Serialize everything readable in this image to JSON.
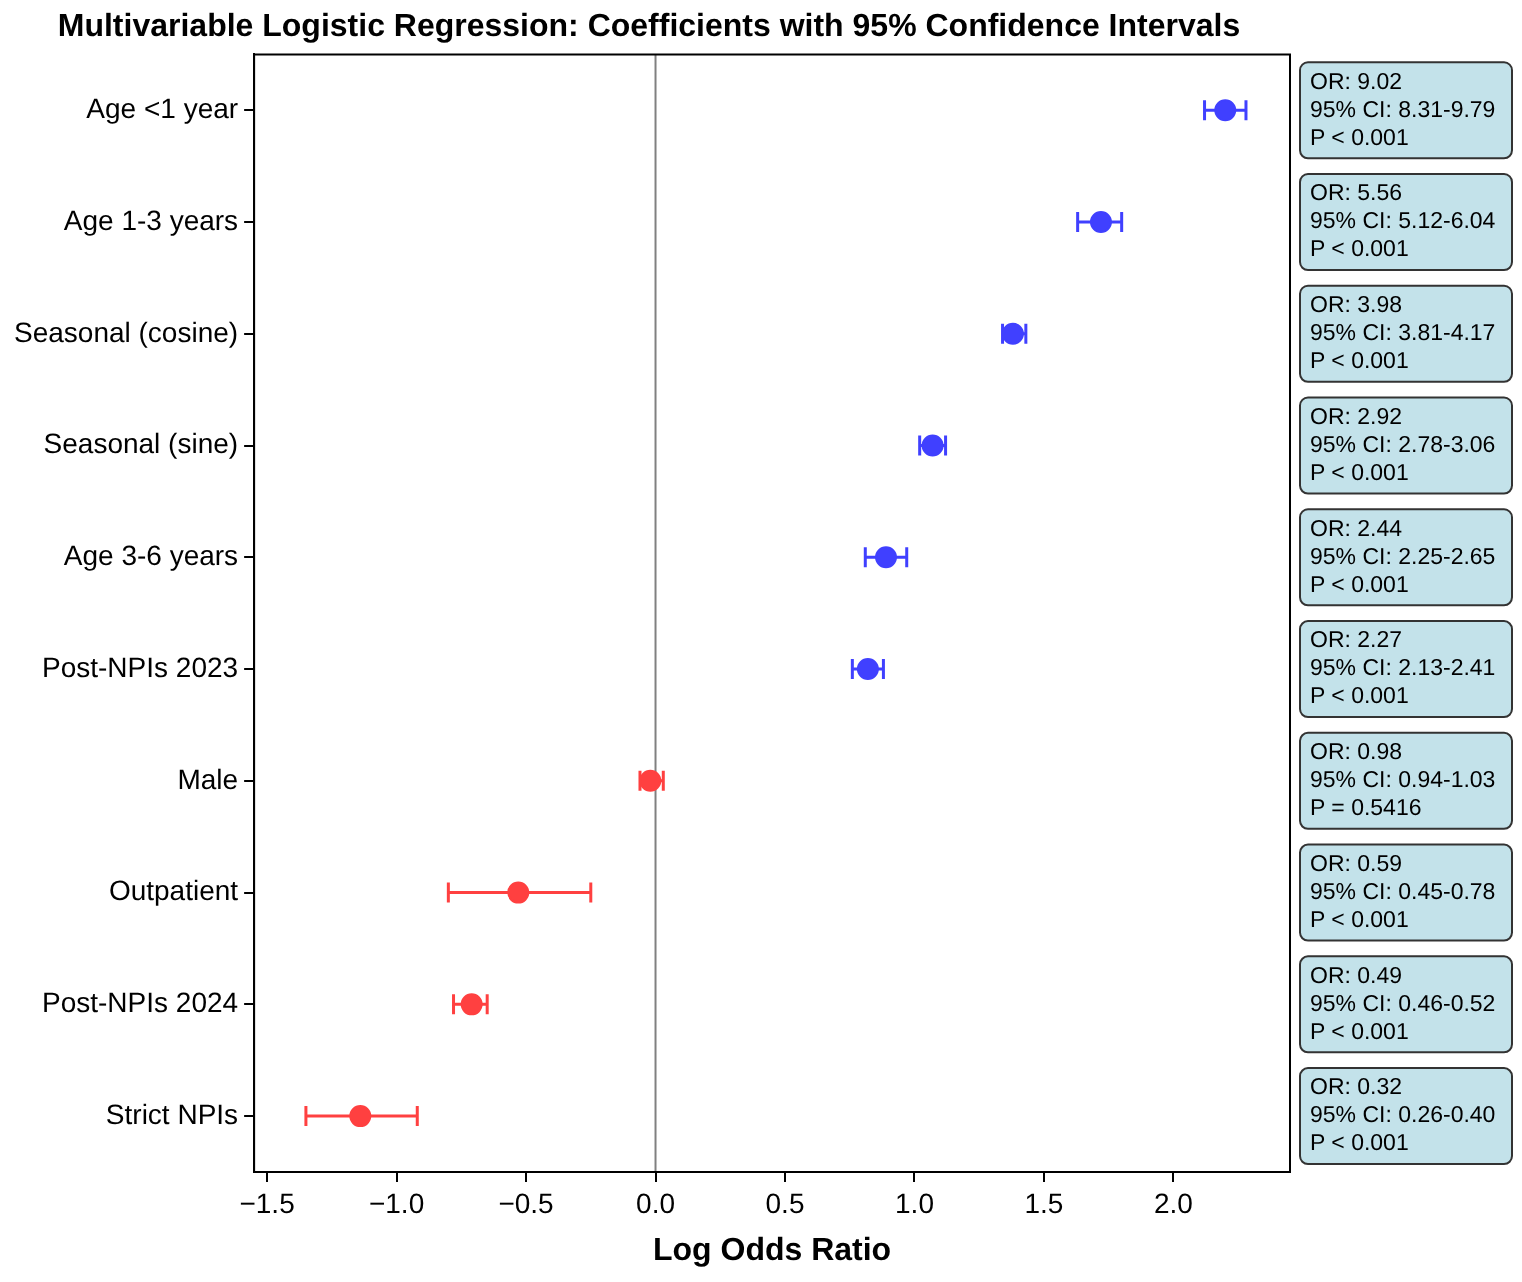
{
  "chart_data": {
    "type": "scatter",
    "orientation": "horizontal",
    "title": "Multivariable Logistic Regression: Coefficients with 95% Confidence Intervals",
    "xlabel": "Log Odds Ratio",
    "categories": [
      "Age <1 year",
      "Age 1-3 years",
      "Seasonal (cosine)",
      "Seasonal (sine)",
      "Age 3-6 years",
      "Post-NPIs 2023",
      "Male",
      "Outpatient",
      "Post-NPIs 2024",
      "Strict NPIs"
    ],
    "values": [
      2.2,
      1.72,
      1.38,
      1.07,
      0.89,
      0.82,
      -0.02,
      -0.53,
      -0.71,
      -1.14
    ],
    "errors": [
      [
        2.12,
        2.28
      ],
      [
        1.63,
        1.8
      ],
      [
        1.34,
        1.43
      ],
      [
        1.02,
        1.12
      ],
      [
        0.81,
        0.97
      ],
      [
        0.76,
        0.88
      ],
      [
        -0.06,
        0.03
      ],
      [
        -0.8,
        -0.25
      ],
      [
        -0.78,
        -0.65
      ],
      [
        -1.35,
        -0.92
      ]
    ],
    "colors": [
      "#4040ff",
      "#4040ff",
      "#4040ff",
      "#4040ff",
      "#4040ff",
      "#4040ff",
      "#ff4040",
      "#ff4040",
      "#ff4040",
      "#ff4040"
    ],
    "xlim": [
      -1.55,
      2.45
    ],
    "xticks": [
      {
        "value": -1.5,
        "label": "−1.5"
      },
      {
        "value": -1,
        "label": "−1.0"
      },
      {
        "value": -0.5,
        "label": "−0.5"
      },
      {
        "value": 0,
        "label": "0.0"
      },
      {
        "value": 0.5,
        "label": "0.5"
      },
      {
        "value": 1,
        "label": "1.0"
      },
      {
        "value": 1.5,
        "label": "1.5"
      },
      {
        "value": 2,
        "label": "2.0"
      }
    ],
    "ref_lines": [
      {
        "axis": "x",
        "value": 0,
        "color": "#808080"
      }
    ],
    "annotations": [
      "OR: 9.02\n95% CI: 8.31-9.79\nP < 0.001",
      "OR: 5.56\n95% CI: 5.12-6.04\nP < 0.001",
      "OR: 3.98\n95% CI: 3.81-4.17\nP < 0.001",
      "OR: 2.92\n95% CI: 2.78-3.06\nP < 0.001",
      "OR: 2.44\n95% CI: 2.25-2.65\nP < 0.001",
      "OR: 2.27\n95% CI: 2.13-2.41\nP < 0.001",
      "OR: 0.98\n95% CI: 0.94-1.03\nP = 0.5416",
      "OR: 0.59\n95% CI: 0.45-0.78\nP < 0.001",
      "OR: 0.49\n95% CI: 0.46-0.52\nP < 0.001",
      "OR: 0.32\n95% CI: 0.26-0.40\nP < 0.001"
    ],
    "marker": "circle",
    "grid": false,
    "legend": false
  }
}
